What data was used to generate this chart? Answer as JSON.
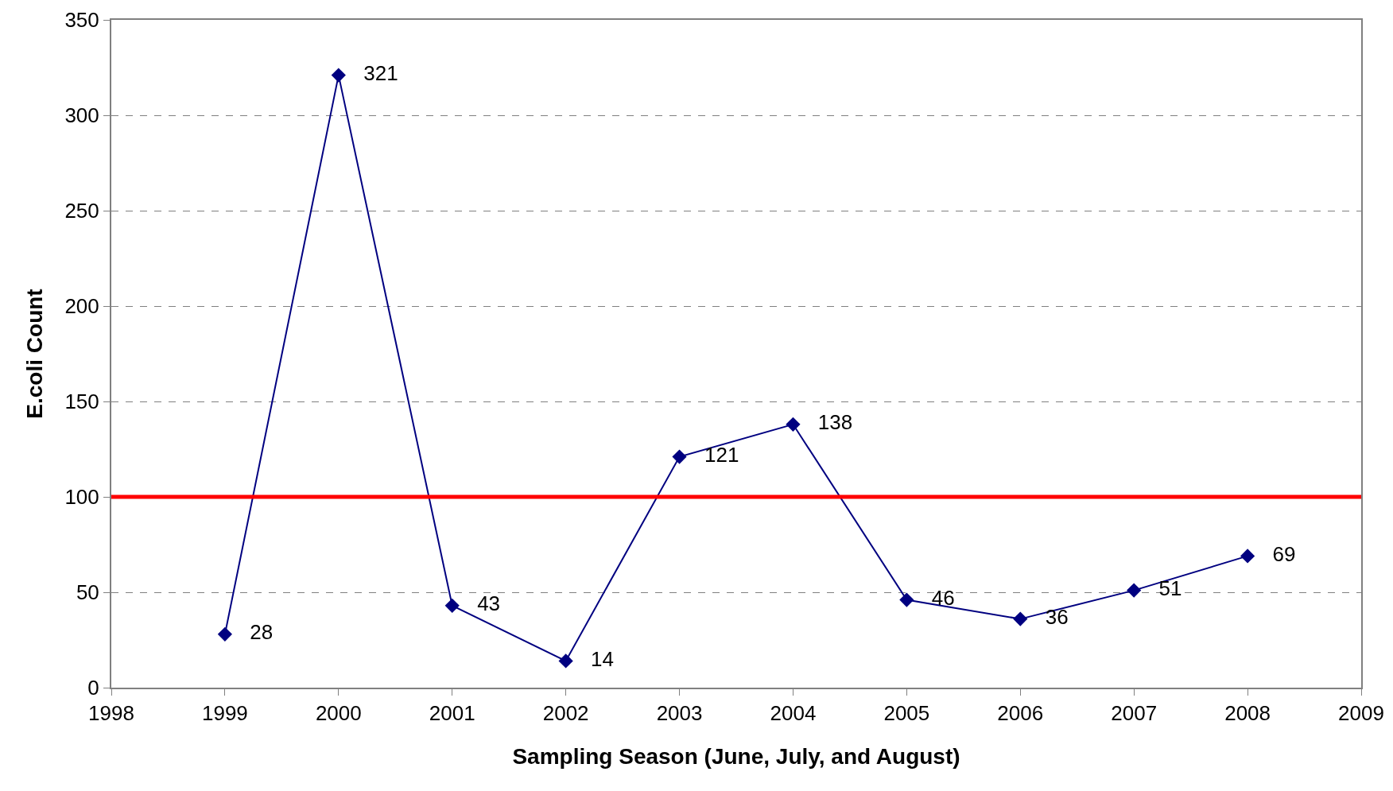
{
  "chart_data": {
    "type": "line",
    "xlabel": "Sampling Season (June, July, and August)",
    "ylabel": "E.coli Count",
    "x": [
      1999,
      2000,
      2001,
      2002,
      2003,
      2004,
      2005,
      2006,
      2007,
      2008
    ],
    "series": [
      {
        "color": "#000080",
        "values": [
          28,
          321,
          43,
          14,
          121,
          138,
          46,
          36,
          51,
          69
        ]
      }
    ],
    "xlim": [
      1998,
      2009
    ],
    "xticks": [
      1998,
      1999,
      2000,
      2001,
      2002,
      2003,
      2004,
      2005,
      2006,
      2007,
      2008,
      2009
    ],
    "ylim": [
      0,
      350
    ],
    "yticks": [
      0,
      50,
      100,
      150,
      200,
      250,
      300,
      350
    ],
    "ref_lines": [
      {
        "axis": "y",
        "value": 100,
        "color": "#ff0000",
        "line_style": "solid"
      }
    ],
    "grid": "y",
    "marker": "diamond",
    "line_style": "solid",
    "data_labels": true
  }
}
